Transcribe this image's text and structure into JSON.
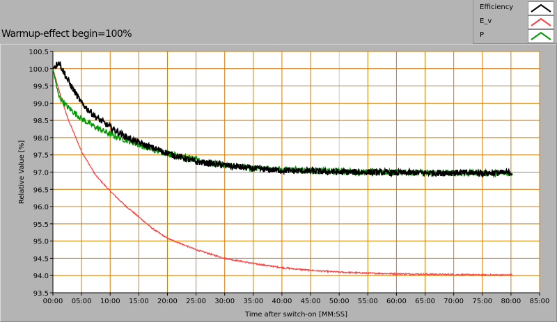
{
  "title": "Warmup-effect begin=100%",
  "legend": [
    {
      "label": "Efficiency",
      "color": "#000000"
    },
    {
      "label": "E_v",
      "color": "#ff4040"
    },
    {
      "label": "P",
      "color": "#009900"
    }
  ],
  "chart_data": {
    "type": "line",
    "title": "Warmup-effect begin=100%",
    "xlabel": "Time after switch-on [MM:SS]",
    "ylabel": "Relative Value [%]",
    "xlim": [
      0,
      85
    ],
    "ylim": [
      93.5,
      100.5
    ],
    "x_ticks": [
      "00:00",
      "05:00",
      "10:00",
      "15:00",
      "20:00",
      "25:00",
      "30:00",
      "35:00",
      "40:00",
      "45:00",
      "50:00",
      "55:00",
      "60:00",
      "65:00",
      "70:00",
      "75:00",
      "80:00",
      "85:00"
    ],
    "y_ticks": [
      "93.5",
      "94.0",
      "94.5",
      "95.0",
      "95.5",
      "96.0",
      "96.5",
      "97.0",
      "97.5",
      "98.0",
      "98.5",
      "99.0",
      "99.5",
      "100.0",
      "100.5"
    ],
    "grid": true,
    "legend_position": "top-right",
    "x": [
      0,
      1,
      2.5,
      5,
      7.5,
      10,
      12.5,
      15,
      17.5,
      20,
      25,
      30,
      35,
      40,
      45,
      50,
      55,
      60,
      65,
      70,
      75,
      80
    ],
    "series": [
      {
        "name": "Efficiency",
        "color": "#000000",
        "values": [
          100.0,
          100.2,
          99.7,
          99.0,
          98.6,
          98.3,
          98.05,
          97.85,
          97.7,
          97.55,
          97.3,
          97.2,
          97.1,
          97.05,
          97.03,
          97.0,
          97.0,
          96.98,
          96.98,
          96.98,
          96.98,
          96.98
        ]
      },
      {
        "name": "E_v",
        "color": "#ff4040",
        "values": [
          100.0,
          99.4,
          98.6,
          97.6,
          96.9,
          96.45,
          96.05,
          95.7,
          95.35,
          95.08,
          94.75,
          94.5,
          94.35,
          94.23,
          94.15,
          94.1,
          94.07,
          94.05,
          94.04,
          94.03,
          94.02,
          94.02
        ]
      },
      {
        "name": "P",
        "color": "#009900",
        "values": [
          100.0,
          99.2,
          98.9,
          98.55,
          98.3,
          98.1,
          97.95,
          97.8,
          97.65,
          97.55,
          97.35,
          97.2,
          97.12,
          97.08,
          97.05,
          97.02,
          97.0,
          97.0,
          96.98,
          96.98,
          96.97,
          96.97
        ]
      }
    ]
  }
}
